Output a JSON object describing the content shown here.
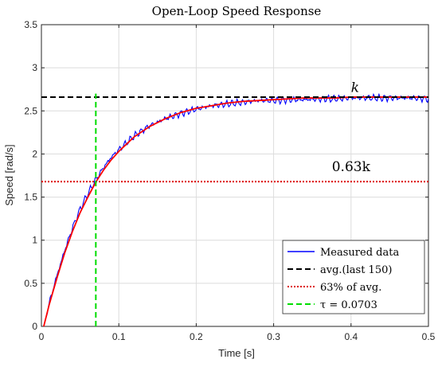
{
  "chart_data": {
    "type": "line",
    "title": "Open-Loop Speed Response",
    "xlabel": "Time [s]",
    "ylabel": "Speed [rad/s]",
    "xlim": [
      0,
      0.5
    ],
    "ylim": [
      0,
      3.5
    ],
    "xticks": [
      0,
      0.1,
      0.2,
      0.3,
      0.4,
      0.5
    ],
    "xtick_labels": [
      "0",
      "0.1",
      "0.2",
      "0.3",
      "0.4",
      "0.5"
    ],
    "yticks": [
      0,
      0.5,
      1,
      1.5,
      2,
      2.5,
      3,
      3.5
    ],
    "ytick_labels": [
      "0",
      "0.5",
      "1",
      "1.5",
      "2",
      "2.5",
      "3",
      "3.5"
    ],
    "grid": true,
    "legend_position": "bottom-right",
    "k": 2.66,
    "tau": 0.0703,
    "t_start": 0.003,
    "annotations": [
      {
        "text": "k",
        "x": 0.4,
        "y": 2.72
      },
      {
        "text": "0.63k",
        "x": 0.4,
        "y": 1.8
      }
    ],
    "series": [
      {
        "name": "Measured data",
        "color": "#0000ff",
        "style": "solid",
        "x": [
          0.003,
          0.01,
          0.02,
          0.03,
          0.04,
          0.05,
          0.06,
          0.07,
          0.08,
          0.09,
          0.1,
          0.12,
          0.14,
          0.16,
          0.18,
          0.2,
          0.22,
          0.24,
          0.26,
          0.28,
          0.3,
          0.32,
          0.34,
          0.36,
          0.38,
          0.4,
          0.42,
          0.44,
          0.46,
          0.48,
          0.5
        ],
        "y": [
          0.0,
          0.27,
          0.59,
          0.88,
          1.14,
          1.36,
          1.54,
          1.7,
          1.84,
          1.96,
          2.05,
          2.21,
          2.33,
          2.41,
          2.47,
          2.52,
          2.56,
          2.58,
          2.6,
          2.62,
          2.62,
          2.63,
          2.63,
          2.64,
          2.64,
          2.65,
          2.65,
          2.65,
          2.65,
          2.65,
          2.64
        ]
      },
      {
        "name": "",
        "color": "#ff0000",
        "style": "solid",
        "x": [
          0.003,
          0.01,
          0.02,
          0.03,
          0.04,
          0.05,
          0.06,
          0.07,
          0.08,
          0.09,
          0.1,
          0.12,
          0.14,
          0.16,
          0.18,
          0.2,
          0.22,
          0.24,
          0.26,
          0.28,
          0.3,
          0.32,
          0.34,
          0.36,
          0.38,
          0.4,
          0.42,
          0.44,
          0.46,
          0.48,
          0.5
        ],
        "y": [
          0.0,
          0.25,
          0.56,
          0.85,
          1.1,
          1.32,
          1.5,
          1.67,
          1.81,
          1.93,
          2.03,
          2.2,
          2.32,
          2.41,
          2.48,
          2.53,
          2.56,
          2.59,
          2.61,
          2.62,
          2.63,
          2.64,
          2.65,
          2.65,
          2.65,
          2.66,
          2.66,
          2.66,
          2.66,
          2.66,
          2.66
        ]
      },
      {
        "name": "avg.(last 150)",
        "color": "#000000",
        "style": "dashed",
        "x": [
          0,
          0.5
        ],
        "y": [
          2.66,
          2.66
        ]
      },
      {
        "name": "63% of avg.",
        "color": "#dd0000",
        "style": "dotted",
        "x": [
          0,
          0.5
        ],
        "y": [
          1.68,
          1.68
        ]
      },
      {
        "name": "τ = 0.0703",
        "color": "#00dd00",
        "style": "dashed",
        "x": [
          0.0703,
          0.0703
        ],
        "y": [
          0,
          2.7
        ]
      }
    ],
    "legend": [
      "Measured data",
      "avg.(last 150)",
      "63% of avg.",
      "τ = 0.0703"
    ]
  }
}
